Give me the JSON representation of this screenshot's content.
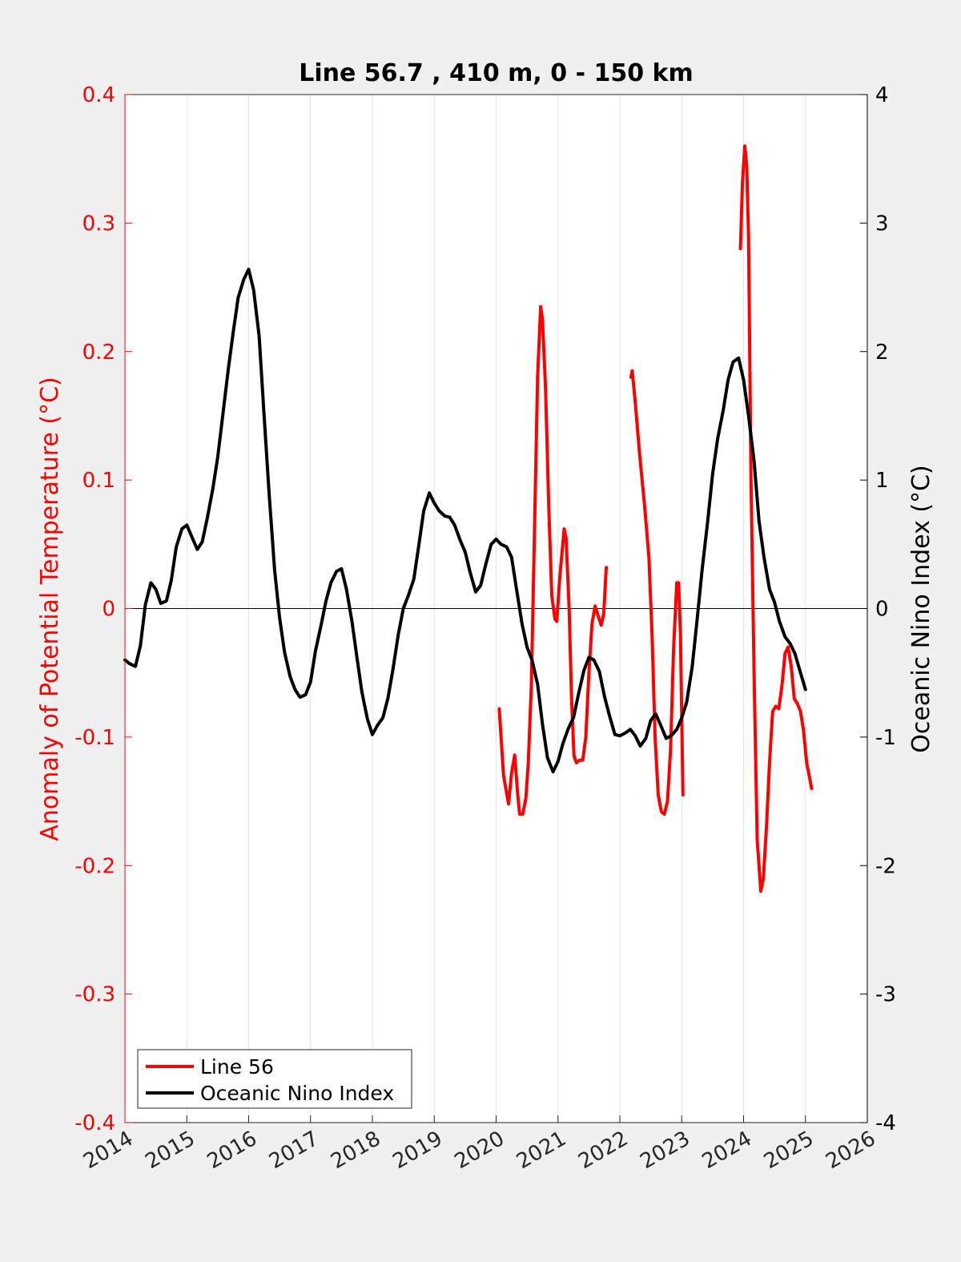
{
  "chart_data": {
    "type": "line",
    "title": "Line 56.7 , 410 m, 0 - 150 km",
    "ylabel_left": "Anomaly of Potential Temperature (°C)",
    "ylabel_right": "Oceanic Nino Index (°C)",
    "xlabel": "",
    "xlim": [
      2014,
      2026
    ],
    "ylim_left": [
      -0.4,
      0.4
    ],
    "ylim_right": [
      -4,
      4
    ],
    "x_ticks": [
      "2014",
      "2015",
      "2016",
      "2017",
      "2018",
      "2019",
      "2020",
      "2021",
      "2022",
      "2023",
      "2024",
      "2025",
      "2026"
    ],
    "y_ticks_left": [
      "0.4",
      "0.3",
      "0.2",
      "0.1",
      "0",
      "-0.1",
      "-0.2",
      "-0.3",
      "-0.4"
    ],
    "y_ticks_right": [
      "4",
      "3",
      "2",
      "1",
      "0",
      "-1",
      "-2",
      "-3",
      "-4"
    ],
    "grid": "vertical",
    "legend_position": "bottom-left",
    "colors": {
      "line56": "#ff0000",
      "oni": "#000000",
      "left_axis": "#ff0000",
      "right_axis": "#000000"
    },
    "legend": [
      "Line 56",
      "Oceanic Nino Index"
    ],
    "series": [
      {
        "name": "Line 56",
        "axis": "left",
        "segments": [
          [
            [
              2020.05,
              -0.078
            ],
            [
              2020.12,
              -0.13
            ],
            [
              2020.2,
              -0.152
            ],
            [
              2020.25,
              -0.128
            ],
            [
              2020.3,
              -0.114
            ],
            [
              2020.35,
              -0.145
            ],
            [
              2020.38,
              -0.16
            ],
            [
              2020.43,
              -0.16
            ],
            [
              2020.48,
              -0.148
            ],
            [
              2020.52,
              -0.12
            ],
            [
              2020.57,
              -0.06
            ],
            [
              2020.62,
              0.06
            ],
            [
              2020.67,
              0.18
            ],
            [
              2020.72,
              0.235
            ],
            [
              2020.75,
              0.225
            ],
            [
              2020.8,
              0.17
            ],
            [
              2020.85,
              0.08
            ],
            [
              2020.9,
              0.01
            ],
            [
              2020.95,
              -0.008
            ],
            [
              2020.98,
              -0.01
            ],
            [
              2021.03,
              0.025
            ],
            [
              2021.1,
              0.062
            ],
            [
              2021.13,
              0.055
            ],
            [
              2021.18,
              0.0
            ],
            [
              2021.22,
              -0.07
            ],
            [
              2021.26,
              -0.115
            ],
            [
              2021.3,
              -0.12
            ],
            [
              2021.35,
              -0.118
            ],
            [
              2021.4,
              -0.118
            ],
            [
              2021.45,
              -0.1
            ],
            [
              2021.5,
              -0.05
            ],
            [
              2021.55,
              -0.012
            ],
            [
              2021.6,
              0.002
            ],
            [
              2021.65,
              -0.006
            ],
            [
              2021.7,
              -0.013
            ],
            [
              2021.74,
              -0.004
            ],
            [
              2021.78,
              0.032
            ]
          ],
          [
            [
              2022.18,
              0.18
            ],
            [
              2022.2,
              0.185
            ],
            [
              2022.25,
              0.16
            ],
            [
              2022.32,
              0.12
            ],
            [
              2022.4,
              0.08
            ],
            [
              2022.47,
              0.04
            ],
            [
              2022.52,
              -0.02
            ],
            [
              2022.57,
              -0.1
            ],
            [
              2022.62,
              -0.145
            ],
            [
              2022.67,
              -0.158
            ],
            [
              2022.72,
              -0.16
            ],
            [
              2022.77,
              -0.15
            ],
            [
              2022.82,
              -0.11
            ],
            [
              2022.87,
              -0.03
            ],
            [
              2022.92,
              0.02
            ],
            [
              2022.95,
              0.02
            ],
            [
              2022.98,
              -0.02
            ],
            [
              2023.02,
              -0.145
            ]
          ],
          [
            [
              2023.95,
              0.28
            ],
            [
              2023.98,
              0.33
            ],
            [
              2024.02,
              0.36
            ],
            [
              2024.05,
              0.345
            ],
            [
              2024.08,
              0.29
            ],
            [
              2024.12,
              0.1
            ],
            [
              2024.17,
              -0.05
            ],
            [
              2024.22,
              -0.18
            ],
            [
              2024.28,
              -0.22
            ],
            [
              2024.32,
              -0.21
            ],
            [
              2024.37,
              -0.17
            ],
            [
              2024.42,
              -0.12
            ],
            [
              2024.47,
              -0.08
            ],
            [
              2024.52,
              -0.076
            ],
            [
              2024.57,
              -0.078
            ],
            [
              2024.62,
              -0.06
            ],
            [
              2024.67,
              -0.035
            ],
            [
              2024.72,
              -0.03
            ],
            [
              2024.77,
              -0.045
            ],
            [
              2024.82,
              -0.07
            ],
            [
              2024.87,
              -0.074
            ],
            [
              2024.92,
              -0.08
            ],
            [
              2024.97,
              -0.095
            ],
            [
              2025.02,
              -0.12
            ],
            [
              2025.1,
              -0.14
            ]
          ]
        ]
      },
      {
        "name": "Oceanic Nino Index",
        "axis": "right",
        "segments": [
          [
            [
              2014.0,
              -0.4
            ],
            [
              2014.08,
              -0.43
            ],
            [
              2014.17,
              -0.45
            ],
            [
              2014.25,
              -0.29
            ],
            [
              2014.33,
              0.03
            ],
            [
              2014.42,
              0.2
            ],
            [
              2014.5,
              0.15
            ],
            [
              2014.58,
              0.04
            ],
            [
              2014.67,
              0.06
            ],
            [
              2014.75,
              0.22
            ],
            [
              2014.83,
              0.48
            ],
            [
              2014.92,
              0.62
            ],
            [
              2015.0,
              0.65
            ],
            [
              2015.08,
              0.56
            ],
            [
              2015.17,
              0.46
            ],
            [
              2015.25,
              0.52
            ],
            [
              2015.33,
              0.7
            ],
            [
              2015.42,
              0.93
            ],
            [
              2015.5,
              1.18
            ],
            [
              2015.58,
              1.5
            ],
            [
              2015.67,
              1.86
            ],
            [
              2015.75,
              2.15
            ],
            [
              2015.83,
              2.42
            ],
            [
              2015.92,
              2.56
            ],
            [
              2016.0,
              2.64
            ],
            [
              2016.08,
              2.48
            ],
            [
              2016.17,
              2.12
            ],
            [
              2016.25,
              1.5
            ],
            [
              2016.33,
              0.9
            ],
            [
              2016.42,
              0.3
            ],
            [
              2016.5,
              -0.07
            ],
            [
              2016.58,
              -0.34
            ],
            [
              2016.67,
              -0.53
            ],
            [
              2016.75,
              -0.63
            ],
            [
              2016.83,
              -0.69
            ],
            [
              2016.92,
              -0.67
            ],
            [
              2017.0,
              -0.57
            ],
            [
              2017.08,
              -0.33
            ],
            [
              2017.17,
              -0.13
            ],
            [
              2017.25,
              0.06
            ],
            [
              2017.33,
              0.2
            ],
            [
              2017.42,
              0.29
            ],
            [
              2017.5,
              0.31
            ],
            [
              2017.58,
              0.15
            ],
            [
              2017.67,
              -0.1
            ],
            [
              2017.75,
              -0.38
            ],
            [
              2017.83,
              -0.65
            ],
            [
              2017.92,
              -0.86
            ],
            [
              2018.0,
              -0.98
            ],
            [
              2018.08,
              -0.91
            ],
            [
              2018.17,
              -0.85
            ],
            [
              2018.25,
              -0.7
            ],
            [
              2018.33,
              -0.48
            ],
            [
              2018.42,
              -0.2
            ],
            [
              2018.5,
              0.0
            ],
            [
              2018.58,
              0.1
            ],
            [
              2018.67,
              0.23
            ],
            [
              2018.75,
              0.49
            ],
            [
              2018.83,
              0.76
            ],
            [
              2018.92,
              0.9
            ],
            [
              2019.0,
              0.82
            ],
            [
              2019.08,
              0.76
            ],
            [
              2019.17,
              0.72
            ],
            [
              2019.25,
              0.71
            ],
            [
              2019.33,
              0.65
            ],
            [
              2019.42,
              0.53
            ],
            [
              2019.5,
              0.44
            ],
            [
              2019.58,
              0.28
            ],
            [
              2019.67,
              0.13
            ],
            [
              2019.75,
              0.18
            ],
            [
              2019.83,
              0.34
            ],
            [
              2019.92,
              0.5
            ],
            [
              2020.0,
              0.54
            ],
            [
              2020.08,
              0.5
            ],
            [
              2020.17,
              0.48
            ],
            [
              2020.25,
              0.4
            ],
            [
              2020.33,
              0.15
            ],
            [
              2020.42,
              -0.12
            ],
            [
              2020.5,
              -0.3
            ],
            [
              2020.58,
              -0.4
            ],
            [
              2020.67,
              -0.59
            ],
            [
              2020.75,
              -0.9
            ],
            [
              2020.83,
              -1.16
            ],
            [
              2020.92,
              -1.27
            ],
            [
              2021.0,
              -1.19
            ],
            [
              2021.08,
              -1.05
            ],
            [
              2021.17,
              -0.93
            ],
            [
              2021.25,
              -0.85
            ],
            [
              2021.33,
              -0.67
            ],
            [
              2021.42,
              -0.48
            ],
            [
              2021.5,
              -0.38
            ],
            [
              2021.58,
              -0.4
            ],
            [
              2021.67,
              -0.49
            ],
            [
              2021.75,
              -0.68
            ],
            [
              2021.83,
              -0.83
            ],
            [
              2021.92,
              -0.98
            ],
            [
              2022.0,
              -0.99
            ],
            [
              2022.08,
              -0.97
            ],
            [
              2022.17,
              -0.94
            ],
            [
              2022.25,
              -0.99
            ],
            [
              2022.33,
              -1.07
            ],
            [
              2022.42,
              -1.01
            ],
            [
              2022.5,
              -0.87
            ],
            [
              2022.58,
              -0.82
            ],
            [
              2022.67,
              -0.92
            ],
            [
              2022.75,
              -1.01
            ],
            [
              2022.83,
              -0.99
            ],
            [
              2022.92,
              -0.94
            ],
            [
              2023.0,
              -0.85
            ],
            [
              2023.08,
              -0.73
            ],
            [
              2023.17,
              -0.45
            ],
            [
              2023.25,
              -0.08
            ],
            [
              2023.33,
              0.3
            ],
            [
              2023.42,
              0.68
            ],
            [
              2023.5,
              1.05
            ],
            [
              2023.58,
              1.32
            ],
            [
              2023.67,
              1.54
            ],
            [
              2023.75,
              1.78
            ],
            [
              2023.83,
              1.92
            ],
            [
              2023.92,
              1.95
            ],
            [
              2024.0,
              1.78
            ],
            [
              2024.08,
              1.5
            ],
            [
              2024.17,
              1.15
            ],
            [
              2024.25,
              0.68
            ],
            [
              2024.33,
              0.4
            ],
            [
              2024.42,
              0.15
            ],
            [
              2024.5,
              0.05
            ],
            [
              2024.58,
              -0.1
            ],
            [
              2024.67,
              -0.22
            ],
            [
              2024.75,
              -0.27
            ],
            [
              2024.83,
              -0.35
            ],
            [
              2024.92,
              -0.5
            ],
            [
              2025.0,
              -0.63
            ]
          ]
        ]
      }
    ]
  }
}
